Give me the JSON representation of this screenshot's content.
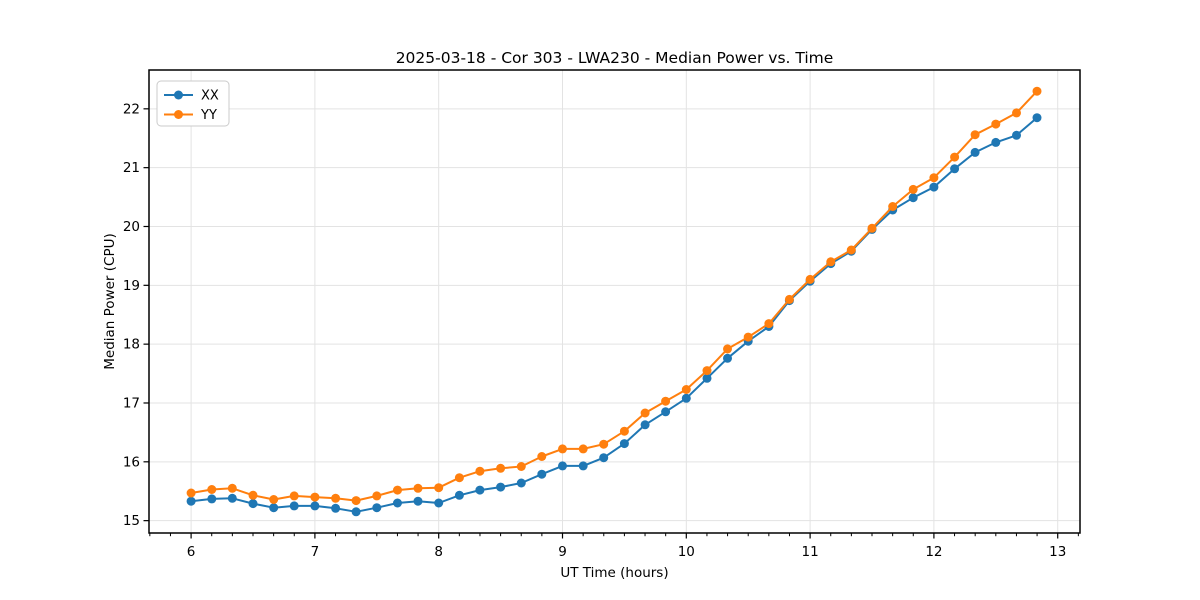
{
  "figure": {
    "background": "#ffffff"
  },
  "chart_data": {
    "type": "line",
    "title": "2025-03-18 - Cor 303 - LWA230 - Median Power vs. Time",
    "xlabel": "UT Time (hours)",
    "ylabel": "Median Power (CPU)",
    "xlim": [
      5.66,
      13.18
    ],
    "ylim": [
      14.79,
      22.66
    ],
    "xticks": [
      6,
      7,
      8,
      9,
      10,
      11,
      12,
      13
    ],
    "yticks": [
      15,
      16,
      17,
      18,
      19,
      20,
      21,
      22
    ],
    "x_minor_step_hours": 0.1667,
    "grid": true,
    "grid_color": "#e3e3e3",
    "legend_position": "upper-left",
    "marker": "circle",
    "x": [
      6.0,
      6.167,
      6.333,
      6.5,
      6.667,
      6.833,
      7.0,
      7.167,
      7.333,
      7.5,
      7.667,
      7.833,
      8.0,
      8.167,
      8.333,
      8.5,
      8.667,
      8.833,
      9.0,
      9.167,
      9.333,
      9.5,
      9.667,
      9.833,
      10.0,
      10.167,
      10.333,
      10.5,
      10.667,
      10.833,
      11.0,
      11.167,
      11.333,
      11.5,
      11.667,
      11.833,
      12.0,
      12.167,
      12.333,
      12.5,
      12.667,
      12.833
    ],
    "series": [
      {
        "name": "XX",
        "color": "#1f77b4",
        "values": [
          15.33,
          15.37,
          15.38,
          15.29,
          15.22,
          15.25,
          15.25,
          15.21,
          15.15,
          15.22,
          15.3,
          15.33,
          15.3,
          15.43,
          15.52,
          15.57,
          15.64,
          15.79,
          15.93,
          15.93,
          16.07,
          16.31,
          16.63,
          16.85,
          17.08,
          17.42,
          17.76,
          18.05,
          18.3,
          18.74,
          19.07,
          19.37,
          19.58,
          19.95,
          20.28,
          20.49,
          20.67,
          20.98,
          21.26,
          21.43,
          21.55,
          21.85
        ]
      },
      {
        "name": "YY",
        "color": "#ff7f0e",
        "values": [
          15.47,
          15.53,
          15.55,
          15.43,
          15.36,
          15.42,
          15.4,
          15.38,
          15.34,
          15.42,
          15.52,
          15.55,
          15.56,
          15.73,
          15.84,
          15.89,
          15.92,
          16.09,
          16.22,
          16.22,
          16.3,
          16.52,
          16.83,
          17.03,
          17.23,
          17.55,
          17.92,
          18.12,
          18.35,
          18.76,
          19.1,
          19.4,
          19.6,
          19.97,
          20.34,
          20.63,
          20.83,
          21.18,
          21.56,
          21.74,
          21.93,
          22.3
        ]
      }
    ]
  }
}
